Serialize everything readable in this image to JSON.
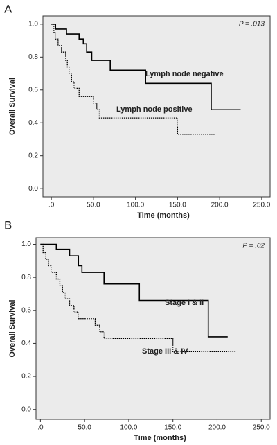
{
  "chart_data": [
    {
      "type": "step",
      "panel": "A",
      "annotation": "P = .013",
      "xlabel": "Time (months)",
      "ylabel": "Overall Survival",
      "xlim": [
        -10,
        260
      ],
      "ylim": [
        -0.05,
        1.05
      ],
      "xticks": [
        {
          "value": 0,
          "label": ".0"
        },
        {
          "value": 50,
          "label": "50.0"
        },
        {
          "value": 100,
          "label": "100.0"
        },
        {
          "value": 150,
          "label": "150.0"
        },
        {
          "value": 200,
          "label": "200.0"
        },
        {
          "value": 250,
          "label": "250.0"
        }
      ],
      "yticks": [
        {
          "value": 0,
          "label": "0.0"
        },
        0.2,
        0.4,
        0.6,
        0.8,
        {
          "value": 1,
          "label": "1.0"
        }
      ],
      "series": [
        {
          "name": "Lymph node negative",
          "color": "#000000",
          "line_style": "solid",
          "x": [
            0,
            5,
            18,
            33,
            38,
            42,
            48,
            70,
            112,
            190,
            225
          ],
          "values": [
            1.0,
            0.97,
            0.94,
            0.91,
            0.88,
            0.83,
            0.78,
            0.72,
            0.64,
            0.48,
            0.48
          ]
        },
        {
          "name": "Lymph node positive",
          "color": "#000000",
          "line_style": "dotted",
          "x": [
            0,
            3,
            5,
            8,
            12,
            17,
            19,
            21,
            24,
            27,
            33,
            50,
            54,
            57,
            150,
            195
          ],
          "values": [
            1.0,
            0.95,
            0.91,
            0.87,
            0.83,
            0.78,
            0.74,
            0.7,
            0.65,
            0.61,
            0.56,
            0.52,
            0.48,
            0.43,
            0.33,
            0.33
          ]
        }
      ]
    },
    {
      "type": "step",
      "panel": "B",
      "annotation": "P = .02",
      "xlabel": "Time (months)",
      "ylabel": "Overall Survival",
      "xlim": [
        -5,
        260
      ],
      "ylim": [
        -0.06,
        1.04
      ],
      "xticks": [
        {
          "value": 0,
          "label": ".0"
        },
        {
          "value": 50,
          "label": "50.0"
        },
        {
          "value": 100,
          "label": "100.0"
        },
        {
          "value": 150,
          "label": "150.0"
        },
        {
          "value": 200,
          "label": "200.0"
        },
        {
          "value": 250,
          "label": "250.0"
        }
      ],
      "yticks": [
        {
          "value": 0,
          "label": "0.0"
        },
        0.2,
        0.4,
        0.6,
        0.8,
        {
          "value": 1,
          "label": "1.0"
        }
      ],
      "series": [
        {
          "name": "Stage I & II",
          "color": "#000000",
          "line_style": "solid",
          "x": [
            0,
            18,
            33,
            43,
            47,
            72,
            112,
            190,
            212
          ],
          "values": [
            1.0,
            0.97,
            0.93,
            0.87,
            0.83,
            0.76,
            0.66,
            0.44,
            0.44
          ]
        },
        {
          "name": "Stage III & IV",
          "color": "#000000",
          "line_style": "dotted",
          "x": [
            0,
            3,
            6,
            9,
            12,
            18,
            22,
            25,
            28,
            33,
            38,
            43,
            62,
            67,
            72,
            150,
            222
          ],
          "values": [
            1.0,
            0.95,
            0.91,
            0.87,
            0.83,
            0.79,
            0.75,
            0.71,
            0.67,
            0.63,
            0.59,
            0.55,
            0.51,
            0.47,
            0.43,
            0.35,
            0.35
          ]
        }
      ]
    }
  ]
}
